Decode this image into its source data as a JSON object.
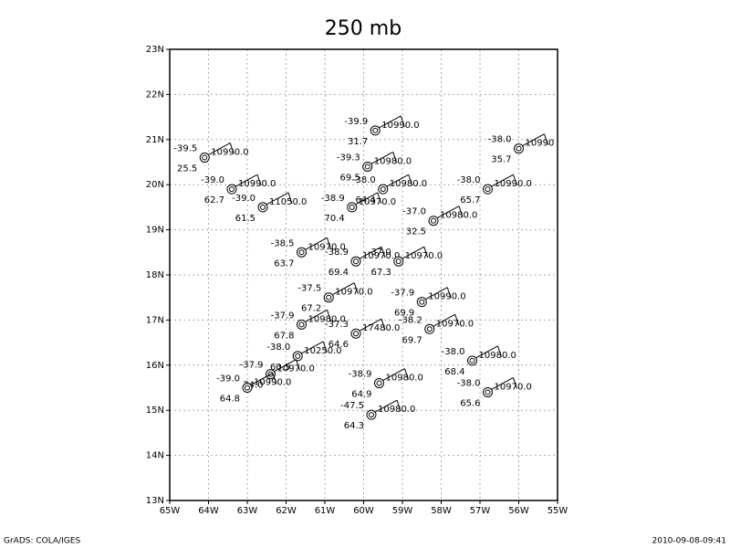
{
  "chart_data": {
    "type": "station",
    "title": "250 mb",
    "xlim": [
      -65,
      -55
    ],
    "ylim": [
      13,
      23
    ],
    "xticks": [
      {
        "value": -65,
        "label": "65W"
      },
      {
        "value": -64,
        "label": "64W"
      },
      {
        "value": -63,
        "label": "63W"
      },
      {
        "value": -62,
        "label": "62W"
      },
      {
        "value": -61,
        "label": "61W"
      },
      {
        "value": -60,
        "label": "60W"
      },
      {
        "value": -59,
        "label": "59W"
      },
      {
        "value": -58,
        "label": "58W"
      },
      {
        "value": -57,
        "label": "57W"
      },
      {
        "value": -56,
        "label": "56W"
      },
      {
        "value": -55,
        "label": "55W"
      }
    ],
    "yticks": [
      {
        "value": 13,
        "label": "13N"
      },
      {
        "value": 14,
        "label": "14N"
      },
      {
        "value": 15,
        "label": "15N"
      },
      {
        "value": 16,
        "label": "16N"
      },
      {
        "value": 17,
        "label": "17N"
      },
      {
        "value": 18,
        "label": "18N"
      },
      {
        "value": 19,
        "label": "19N"
      },
      {
        "value": 20,
        "label": "20N"
      },
      {
        "value": 21,
        "label": "21N"
      },
      {
        "value": 22,
        "label": "22N"
      },
      {
        "value": 23,
        "label": "23N"
      }
    ],
    "grid": true,
    "stations": [
      {
        "lon": -64.1,
        "lat": 20.6,
        "temp": "-39.5",
        "height": "10990.0",
        "lower": "25.5"
      },
      {
        "lon": -63.4,
        "lat": 19.9,
        "temp": "-39.0",
        "height": "10990.0",
        "lower": "62.7"
      },
      {
        "lon": -62.6,
        "lat": 19.5,
        "temp": "-39.0",
        "height": "11050.0",
        "lower": "61.5"
      },
      {
        "lon": -59.7,
        "lat": 21.2,
        "temp": "-39.9",
        "height": "10990.0",
        "lower": "31.7"
      },
      {
        "lon": -59.9,
        "lat": 20.4,
        "temp": "-39.3",
        "height": "10980.0",
        "lower": "69.5"
      },
      {
        "lon": -59.5,
        "lat": 19.9,
        "temp": "-38.0",
        "height": "10980.0",
        "lower": "64.4"
      },
      {
        "lon": -60.3,
        "lat": 19.5,
        "temp": "-38.9",
        "height": "10970.0",
        "lower": "70.4"
      },
      {
        "lon": -58.2,
        "lat": 19.2,
        "temp": "-37.0",
        "height": "10980.0",
        "lower": "32.5"
      },
      {
        "lon": -56.8,
        "lat": 19.9,
        "temp": "-38.0",
        "height": "10990.0",
        "lower": "65.7"
      },
      {
        "lon": -56.0,
        "lat": 20.8,
        "temp": "-38.0",
        "height": "10990",
        "lower": "35.7"
      },
      {
        "lon": -61.6,
        "lat": 18.5,
        "temp": "-38.5",
        "height": "10970.0",
        "lower": "63.7"
      },
      {
        "lon": -60.2,
        "lat": 18.3,
        "temp": "-38.9",
        "height": "10970.0",
        "lower": "69.4"
      },
      {
        "lon": -59.1,
        "lat": 18.3,
        "temp": "-37.0",
        "height": "10970.0",
        "lower": "67.3"
      },
      {
        "lon": -60.9,
        "lat": 17.5,
        "temp": "-37.5",
        "height": "10970.0",
        "lower": "67.2"
      },
      {
        "lon": -58.5,
        "lat": 17.4,
        "temp": "-37.9",
        "height": "10990.0",
        "lower": "69.9"
      },
      {
        "lon": -61.6,
        "lat": 16.9,
        "temp": "-37.9",
        "height": "10980.0",
        "lower": "67.8"
      },
      {
        "lon": -60.2,
        "lat": 16.7,
        "temp": "-37.3",
        "height": "17480.0",
        "lower": "64.6"
      },
      {
        "lon": -58.3,
        "lat": 16.8,
        "temp": "-38.2",
        "height": "10970.0",
        "lower": "69.7"
      },
      {
        "lon": -61.7,
        "lat": 16.2,
        "temp": "-38.0",
        "height": "10250.0",
        "lower": "60.5"
      },
      {
        "lon": -62.4,
        "lat": 15.8,
        "temp": "-37.9",
        "height": "10970.0",
        "lower": "74.0"
      },
      {
        "lon": -63.0,
        "lat": 15.5,
        "temp": "-39.0",
        "height": "10990.0",
        "lower": "64.8"
      },
      {
        "lon": -59.6,
        "lat": 15.6,
        "temp": "-38.9",
        "height": "10980.0",
        "lower": "64.9"
      },
      {
        "lon": -59.8,
        "lat": 14.9,
        "temp": "-47.5",
        "height": "10980.0",
        "lower": "64.3"
      },
      {
        "lon": -57.2,
        "lat": 16.1,
        "temp": "-38.0",
        "height": "10980.0",
        "lower": "68.4"
      },
      {
        "lon": -56.8,
        "lat": 15.4,
        "temp": "-38.0",
        "height": "10970.0",
        "lower": "65.6"
      }
    ]
  },
  "footer": {
    "left": "GrADS: COLA/IGES",
    "right": "2010-09-08-09:41"
  }
}
